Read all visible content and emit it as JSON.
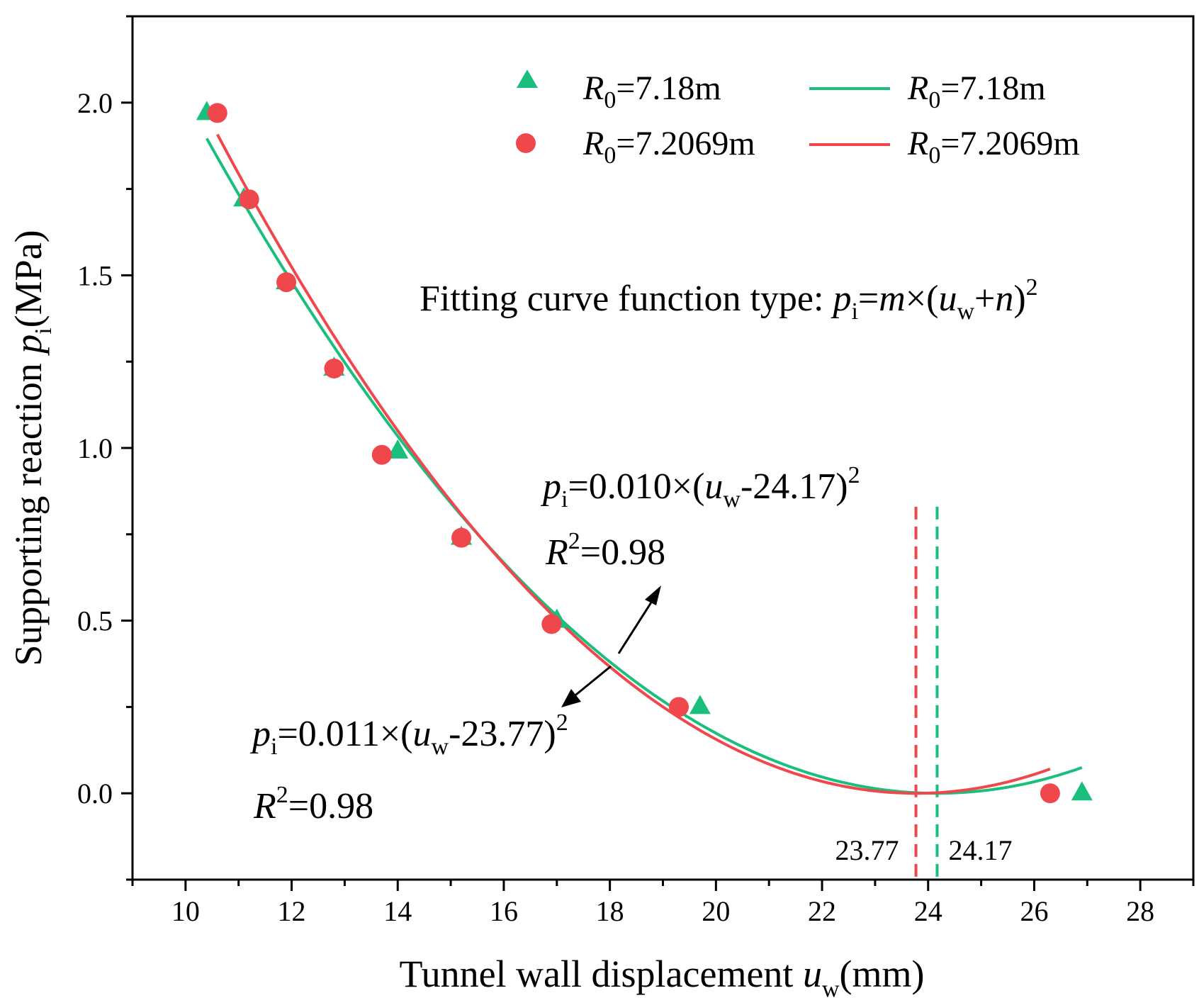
{
  "chart_data": {
    "type": "scatter",
    "xlabel": "Tunnel wall displacement u_w (mm)",
    "ylabel": "Supporting reaction p_i (MPa)",
    "xlim": [
      9.0,
      29.0
    ],
    "ylim": [
      -0.25,
      2.25
    ],
    "x_ticks": [
      10,
      12,
      14,
      16,
      18,
      20,
      22,
      24,
      26,
      28
    ],
    "x_tick_labels": [
      "10",
      "12",
      "14",
      "16",
      "18",
      "20",
      "22",
      "24",
      "26",
      "28"
    ],
    "y_ticks": [
      0.0,
      0.5,
      1.0,
      1.5,
      2.0
    ],
    "y_tick_labels": [
      "0.0",
      "0.5",
      "1.0",
      "1.5",
      "2.0"
    ],
    "series": [
      {
        "name": "R0=7.18m (data)",
        "kind": "points",
        "marker": "triangle",
        "color": "#1ABF7E",
        "x": [
          10.4,
          11.1,
          11.9,
          12.8,
          14.0,
          15.2,
          17.0,
          19.7,
          26.9
        ],
        "y": [
          1.97,
          1.72,
          1.48,
          1.23,
          0.99,
          0.74,
          0.5,
          0.25,
          0.0
        ]
      },
      {
        "name": "R0=7.2069m (data)",
        "kind": "points",
        "marker": "circle",
        "color": "#F0474C",
        "x": [
          10.6,
          11.2,
          11.9,
          12.8,
          13.7,
          15.2,
          16.9,
          19.3,
          26.3
        ],
        "y": [
          1.97,
          1.72,
          1.48,
          1.23,
          0.98,
          0.74,
          0.49,
          0.25,
          0.0
        ]
      },
      {
        "name": "R0=7.18m (fit)",
        "kind": "line",
        "color": "#1ABF7E",
        "m": 0.01,
        "vertex": 24.17,
        "x_range": [
          10.4,
          26.9
        ]
      },
      {
        "name": "R0=7.2069m (fit)",
        "kind": "line",
        "color": "#F0474C",
        "m": 0.011,
        "vertex": 23.77,
        "x_range": [
          10.6,
          26.3
        ]
      }
    ],
    "vertical_markers": [
      {
        "x": 23.77,
        "label": "23.77",
        "color": "#F0474C"
      },
      {
        "x": 24.17,
        "label": "24.17",
        "color": "#1ABF7E"
      }
    ],
    "legend": {
      "placement": "top-right",
      "entries": [
        {
          "label": "=7.18m",
          "prefix": "R",
          "sub": "0"
        },
        {
          "label": "=7.2069m",
          "prefix": "R",
          "sub": "0"
        },
        {
          "label": "=7.18m",
          "prefix": "R",
          "sub": "0"
        },
        {
          "label": "=7.2069m",
          "prefix": "R",
          "sub": "0"
        }
      ]
    },
    "axis_titles": {
      "x_main": "Tunnel wall displacement ",
      "x_var": "u",
      "x_sub": "w",
      "x_unit": "(mm)",
      "y_main": "Supporting reaction ",
      "y_var": "p",
      "y_sub": "i",
      "y_unit": "(MPa)"
    },
    "annotations": {
      "fit_type_label": "Fitting curve function type: ",
      "fit_type_p": "p",
      "fit_type_sub": "i",
      "fit_type_eq": "=",
      "fit_type_m": "m",
      "fit_type_times": "×(",
      "fit_type_u": "u",
      "fit_type_usub": "w",
      "fit_type_plus": "+",
      "fit_type_n": "n",
      "fit_type_close": ")",
      "fit_type_sup": "2",
      "green_eq_p": "p",
      "green_eq_sub": "i",
      "green_eq_body": "=0.010×(",
      "green_eq_u": "u",
      "green_eq_usub": "w",
      "green_eq_tail": "-24.17)",
      "green_eq_sup": "2",
      "green_r2_R": "R",
      "green_r2_sup": "2",
      "green_r2_val": "=0.98",
      "red_eq_p": "p",
      "red_eq_sub": "i",
      "red_eq_body": "=0.011×(",
      "red_eq_u": "u",
      "red_eq_usub": "w",
      "red_eq_tail": "-23.77)",
      "red_eq_sup": "2",
      "red_r2_R": "R",
      "red_r2_sup": "2",
      "red_r2_val": "=0.98"
    }
  }
}
